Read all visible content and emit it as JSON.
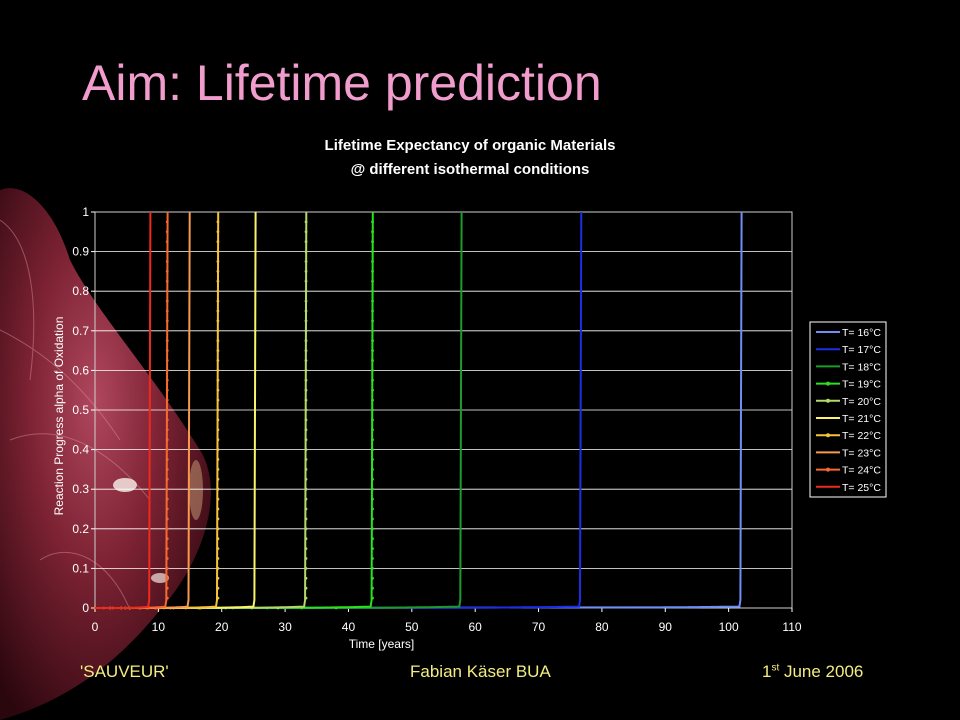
{
  "slide": {
    "title": "Aim: Lifetime prediction",
    "footer_left": "'SAUVEUR'",
    "footer_center": "Fabian Käser BUA",
    "footer_right_num": "1",
    "footer_right_sup": "st",
    "footer_right_rest": " June 2006"
  },
  "chart_data": {
    "type": "line",
    "title": "Lifetime Expectancy of organic Materials",
    "subtitle": "@ different isothermal conditions",
    "xlabel": "Time [years]",
    "ylabel": "Reaction Progress alpha of Oxidation",
    "xlim": [
      0,
      110
    ],
    "ylim": [
      0,
      1
    ],
    "xticks": [
      0,
      10,
      20,
      30,
      40,
      50,
      60,
      70,
      80,
      90,
      100,
      110
    ],
    "yticks": [
      0,
      0.1,
      0.2,
      0.3,
      0.4,
      0.5,
      0.6,
      0.7,
      0.8,
      0.9,
      1
    ],
    "grid": "horizontal",
    "legend_position": "right",
    "series": [
      {
        "name": "T= 16°C",
        "color": "#6f8ff7",
        "marker": "none",
        "failure_time": 101.7
      },
      {
        "name": "T= 17°C",
        "color": "#1c2fe6",
        "marker": "none",
        "failure_time": 76.4
      },
      {
        "name": "T= 18°C",
        "color": "#1f9a2d",
        "marker": "none",
        "failure_time": 57.5
      },
      {
        "name": "T= 19°C",
        "color": "#2ce01f",
        "marker": "dot",
        "failure_time": 43.5
      },
      {
        "name": "T= 20°C",
        "color": "#b6d86b",
        "marker": "triangle",
        "failure_time": 33.0
      },
      {
        "name": "T= 21°C",
        "color": "#f7f46a",
        "marker": "none",
        "failure_time": 25.0
      },
      {
        "name": "T= 22°C",
        "color": "#f7c23a",
        "marker": "dot",
        "failure_time": 19.1
      },
      {
        "name": "T= 23°C",
        "color": "#f79a4d",
        "marker": "none",
        "failure_time": 14.6
      },
      {
        "name": "T= 24°C",
        "color": "#f76a2f",
        "marker": "dot",
        "failure_time": 11.1
      },
      {
        "name": "T= 25°C",
        "color": "#ee2a1e",
        "marker": "none",
        "failure_time": 8.4
      }
    ]
  }
}
